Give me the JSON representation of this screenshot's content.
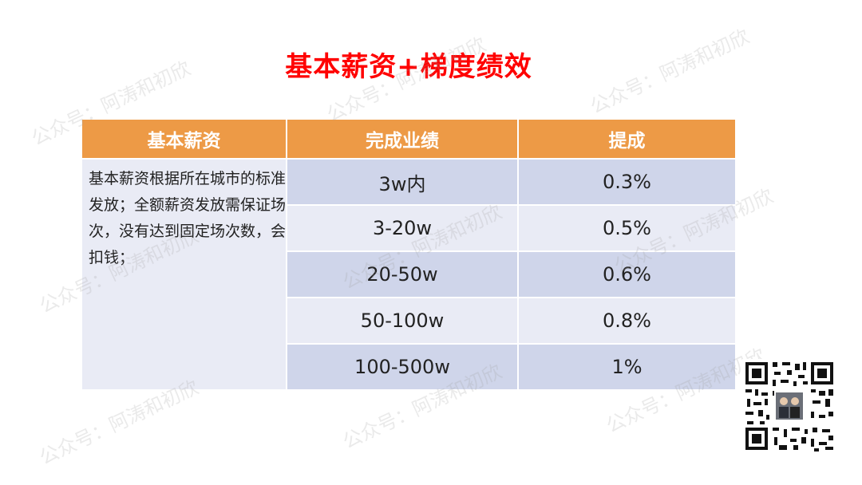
{
  "title": "基本薪资+梯度绩效",
  "table": {
    "headers": [
      "基本薪资",
      "完成业绩",
      "提成"
    ],
    "description": "基本薪资根据所在城市的标准发放；全额薪资发放需保证场次，没有达到固定场次数，会扣钱；",
    "rows": [
      {
        "performance": "3w内",
        "commission": "0.3%"
      },
      {
        "performance": "3-20w",
        "commission": "0.5%"
      },
      {
        "performance": "20-50w",
        "commission": "0.6%"
      },
      {
        "performance": "50-100w",
        "commission": "0.8%"
      },
      {
        "performance": "100-500w",
        "commission": "1%"
      }
    ]
  },
  "watermark_text": "公众号：阿涛和初欣",
  "colors": {
    "title": "#ff0000",
    "header": "#ed9a46",
    "row_dark": "#cfd5ea",
    "row_light": "#e9ebf5"
  }
}
